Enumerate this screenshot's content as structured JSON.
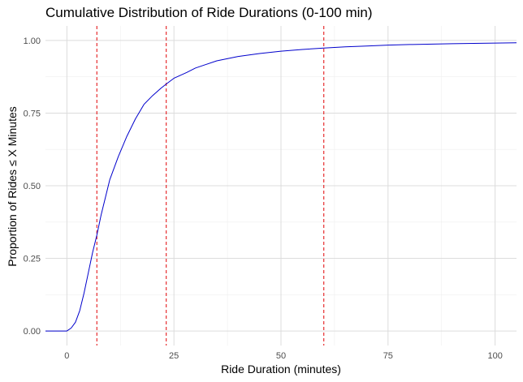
{
  "chart_data": {
    "type": "line",
    "title": "Cumulative Distribution of Ride Durations (0-100 min)",
    "xlabel": "Ride Duration (minutes)",
    "ylabel": "Proportion of Rides ≤ X Minutes",
    "xlim": [
      -5,
      105
    ],
    "ylim": [
      -0.05,
      1.05
    ],
    "x_ticks": [
      0,
      25,
      50,
      75,
      100
    ],
    "x_tick_labels": [
      "0",
      "25",
      "50",
      "75",
      "100"
    ],
    "y_ticks": [
      0,
      0.25,
      0.5,
      0.75,
      1.0
    ],
    "y_tick_labels": [
      "0.00",
      "0.25",
      "0.50",
      "0.75",
      "1.00"
    ],
    "grid": true,
    "series": [
      {
        "color": "#0000cc",
        "x": [
          -5,
          0,
          1,
          2,
          3,
          4,
          5,
          6,
          7,
          8,
          9,
          10,
          12,
          14,
          16,
          18,
          20,
          22,
          23.2,
          25,
          28,
          30,
          35,
          40,
          45,
          50,
          55,
          60,
          65,
          70,
          75,
          80,
          90,
          100,
          105
        ],
        "y": [
          0,
          0,
          0.01,
          0.03,
          0.07,
          0.13,
          0.2,
          0.27,
          0.33,
          0.4,
          0.46,
          0.52,
          0.6,
          0.67,
          0.73,
          0.78,
          0.81,
          0.836,
          0.85,
          0.87,
          0.89,
          0.905,
          0.93,
          0.945,
          0.955,
          0.963,
          0.969,
          0.974,
          0.978,
          0.981,
          0.984,
          0.986,
          0.989,
          0.991,
          0.992
        ]
      }
    ],
    "reference_lines": [
      {
        "axis": "x",
        "value": 7,
        "color": "#e41a1c",
        "style": "dashed"
      },
      {
        "axis": "x",
        "value": 23.2,
        "color": "#e41a1c",
        "style": "dashed"
      },
      {
        "axis": "x",
        "value": 60,
        "color": "#e41a1c",
        "style": "dashed"
      }
    ]
  }
}
